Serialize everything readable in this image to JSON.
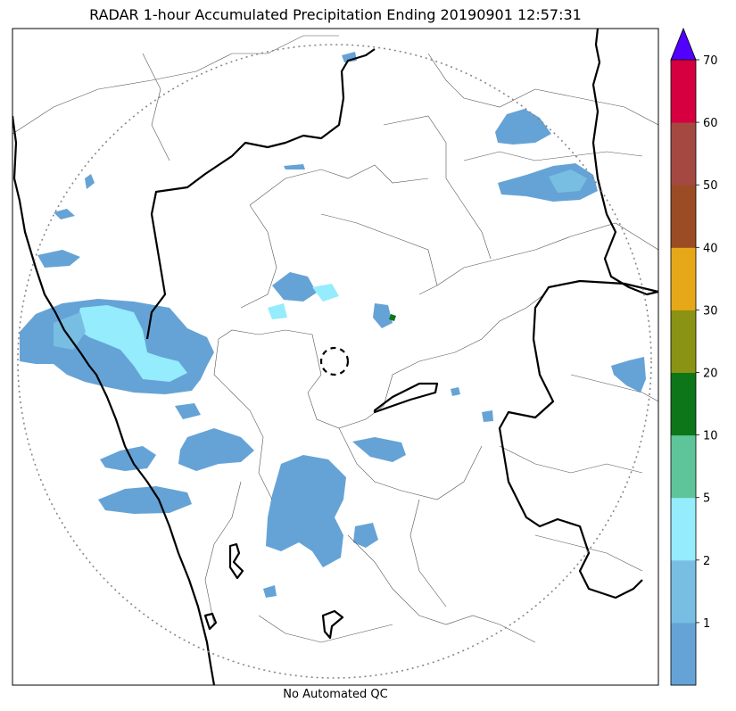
{
  "figure": {
    "title": "RADAR 1-hour Accumulated Precipitation Ending 20190901 12:57:31",
    "footer": "No Automated QC"
  },
  "colorbar": {
    "tick_labels": [
      "1",
      "2",
      "5",
      "10",
      "20",
      "30",
      "40",
      "50",
      "60",
      "70"
    ],
    "colors": [
      "#65a3d6",
      "#78bee3",
      "#94ecfc",
      "#5ec49a",
      "#0c7618",
      "#8a9313",
      "#e6a818",
      "#9b4c25",
      "#a44942",
      "#d60041"
    ],
    "extend_color": "#5200ff"
  },
  "map": {
    "precip_colors": {
      "light": "#65a3d6",
      "light2": "#78bee3",
      "cyan": "#94ecfc",
      "green": "#0c7618"
    },
    "range_ring": "dotted",
    "radar_site_marker": "dashed-circle"
  }
}
